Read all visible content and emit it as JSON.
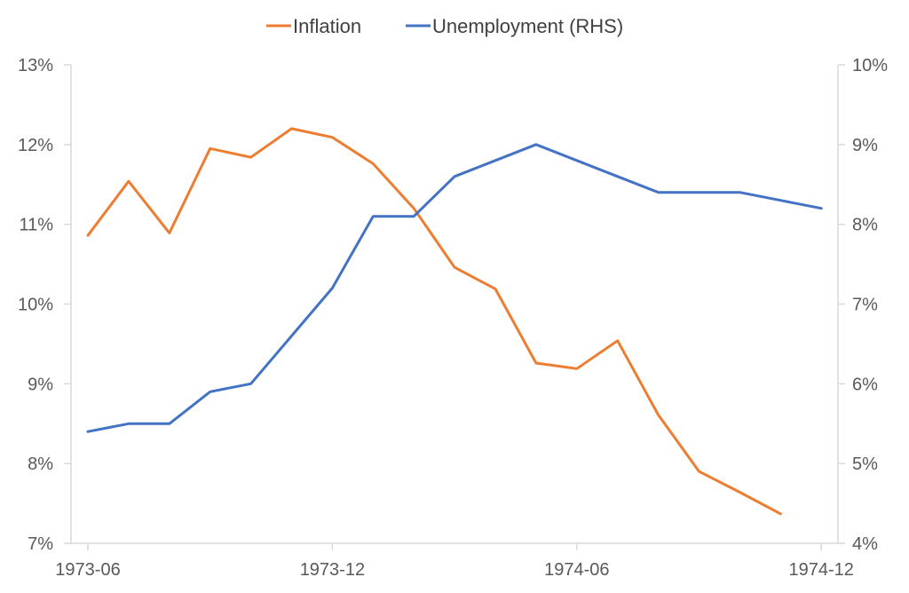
{
  "chart_data": {
    "type": "line",
    "x": [
      "1973-06",
      "1973-07",
      "1973-08",
      "1973-09",
      "1973-10",
      "1973-11",
      "1973-12",
      "1974-01",
      "1974-02",
      "1974-03",
      "1974-04",
      "1974-05",
      "1974-06",
      "1974-07",
      "1974-08",
      "1974-09",
      "1974-10",
      "1974-11",
      "1974-12"
    ],
    "x_ticks": [
      "1973-06",
      "1973-12",
      "1974-06",
      "1974-12"
    ],
    "series": [
      {
        "name": "Inflation",
        "axis": "left",
        "color": "#ED7D31",
        "values": [
          10.86,
          11.54,
          10.89,
          11.95,
          11.84,
          12.2,
          12.09,
          11.76,
          11.2,
          10.46,
          10.19,
          9.26,
          9.19,
          9.54,
          8.61,
          7.9,
          7.64,
          7.37,
          null
        ]
      },
      {
        "name": "Unemployment (RHS)",
        "axis": "right",
        "color": "#4472C4",
        "values": [
          5.4,
          5.5,
          5.5,
          5.9,
          6.0,
          6.6,
          7.2,
          8.1,
          8.1,
          8.6,
          8.8,
          9.0,
          8.8,
          8.6,
          8.4,
          8.4,
          8.4,
          8.3,
          8.2
        ]
      }
    ],
    "y_left": {
      "min": 7,
      "max": 13,
      "step": 1,
      "ticks": [
        "7%",
        "8%",
        "9%",
        "10%",
        "11%",
        "12%",
        "13%"
      ]
    },
    "y_right": {
      "min": 4,
      "max": 10,
      "step": 1,
      "ticks": [
        "4%",
        "5%",
        "6%",
        "7%",
        "8%",
        "9%",
        "10%"
      ]
    },
    "grid": false,
    "legend_position": "top-center"
  }
}
